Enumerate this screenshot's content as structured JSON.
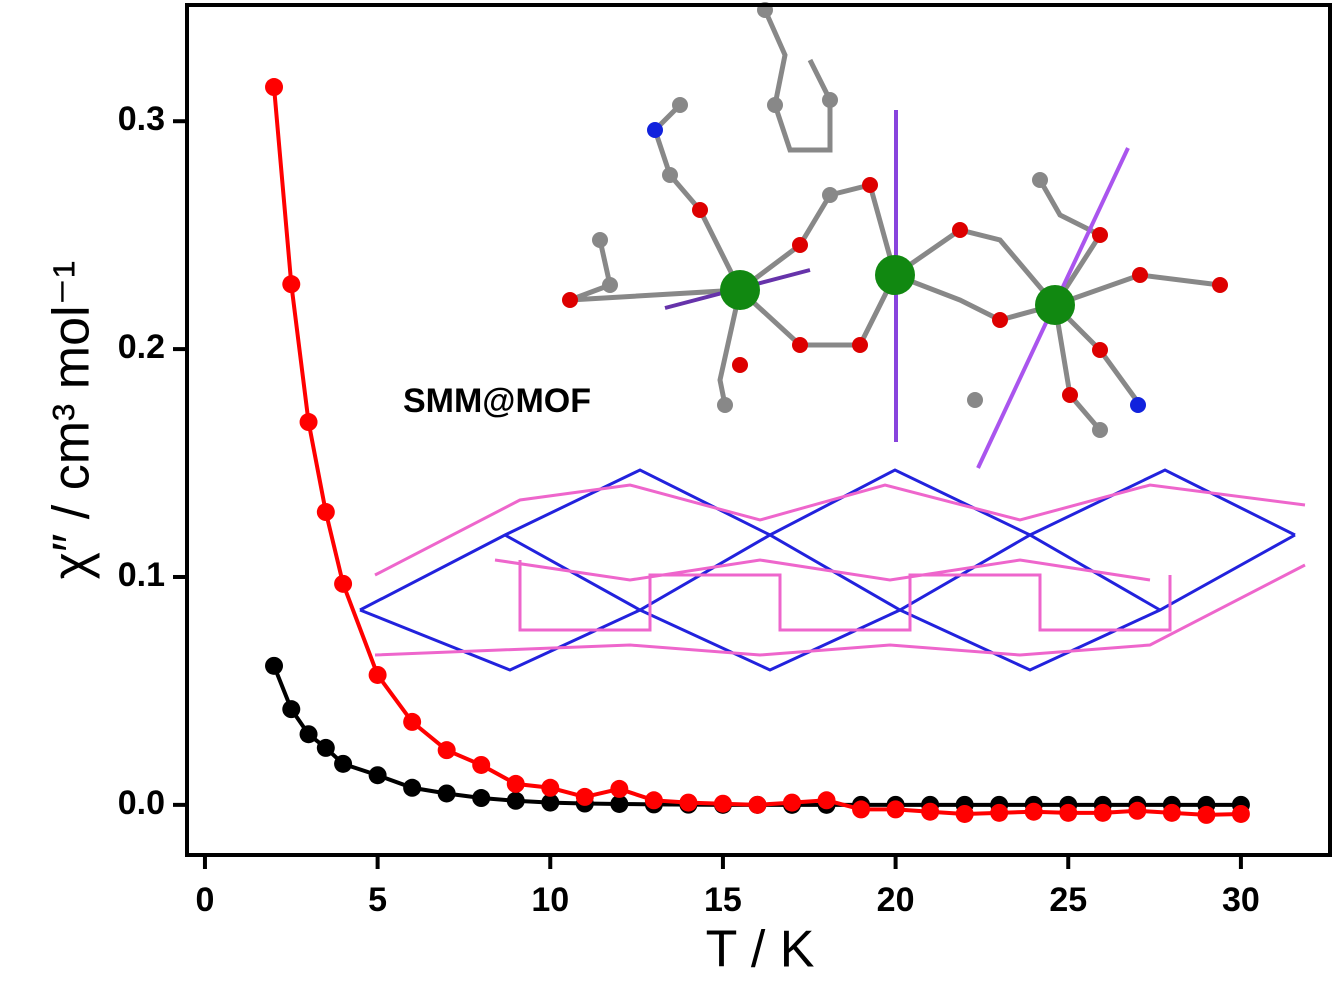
{
  "chart_data": {
    "type": "line",
    "xlabel": "T / K",
    "ylabel": "χ″ / cm³ mol⁻¹",
    "annotation": "SMM@MOF",
    "x": [
      2,
      2.5,
      3,
      3.5,
      4,
      5,
      6,
      7,
      8,
      9,
      10,
      11,
      12,
      13,
      14,
      15,
      16,
      17,
      18,
      19,
      20,
      21,
      22,
      23,
      24,
      25,
      26,
      27,
      28,
      29,
      30
    ],
    "series": [
      {
        "name": "black",
        "color": "#000000",
        "values": [
          0.061,
          0.042,
          0.031,
          0.025,
          0.018,
          0.013,
          0.0075,
          0.005,
          0.003,
          0.0018,
          0.001,
          0.0006,
          0.0004,
          0.0002,
          0.0001,
          0,
          0,
          0,
          0,
          0,
          0,
          0,
          0,
          0,
          0,
          0,
          0,
          0,
          0,
          0,
          0
        ]
      },
      {
        "name": "red",
        "color": "#ff0000",
        "values": [
          0.315,
          0.2285,
          0.168,
          0.1285,
          0.097,
          0.057,
          0.0364,
          0.024,
          0.0175,
          0.0092,
          0.0075,
          0.0035,
          0.007,
          0.002,
          0.001,
          0.0005,
          0,
          0.001,
          0.002,
          -0.002,
          -0.002,
          -0.003,
          -0.004,
          -0.0035,
          -0.003,
          -0.0035,
          -0.0035,
          -0.0026,
          -0.0035,
          -0.0044,
          -0.004
        ]
      }
    ],
    "xlim": [
      -0.52,
      32.58
    ],
    "ylim": [
      -0.022,
      0.351
    ],
    "xticks": [
      0,
      5,
      10,
      15,
      20,
      25,
      30
    ],
    "yticks": [
      {
        "value": 0,
        "label": "0.0"
      },
      0.1,
      0.2,
      0.3
    ]
  }
}
